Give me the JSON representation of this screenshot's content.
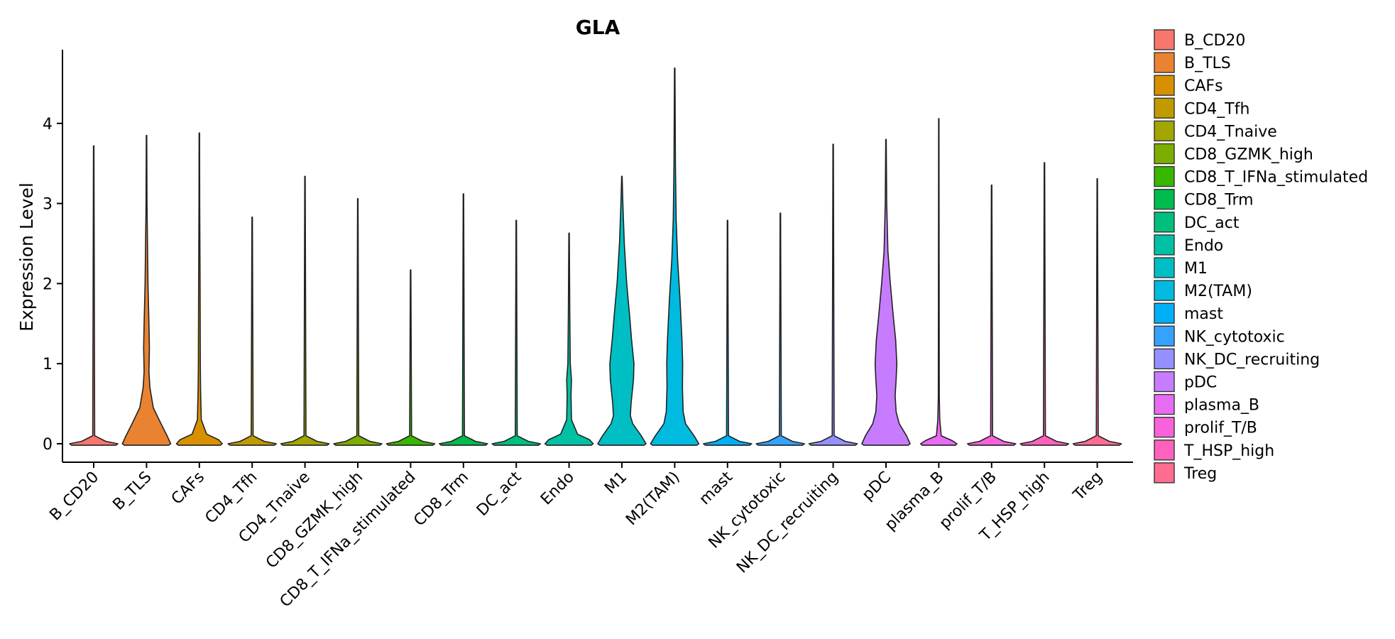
{
  "chart_data": {
    "type": "violin",
    "title": "GLA",
    "xlabel": "",
    "ylabel": "Expression Level",
    "ylim": [
      -0.23,
      4.9
    ],
    "yticks": [
      0,
      1,
      2,
      3,
      4
    ],
    "categories": [
      "B_CD20",
      "B_TLS",
      "CAFs",
      "CD4_Tfh",
      "CD4_Tnaive",
      "CD8_GZMK_high",
      "CD8_T_IFNa_stimulated",
      "CD8_Trm",
      "DC_act",
      "Endo",
      "M1",
      "M2(TAM)",
      "mast",
      "NK_cytotoxic",
      "NK_DC_recruiting",
      "pDC",
      "plasma_B",
      "prolif_T/B",
      "T_HSP_high",
      "Treg"
    ],
    "colors": [
      "#F8766D",
      "#EA8331",
      "#D89000",
      "#C09B00",
      "#A3A500",
      "#7CAE00",
      "#39B600",
      "#00BB4E",
      "#00BF7D",
      "#00C1A3",
      "#00BFC4",
      "#00BAE0",
      "#00B0F6",
      "#35A2FF",
      "#9590FF",
      "#C77CFF",
      "#E76BF3",
      "#FA62DB",
      "#FF62BC",
      "#FF6C91"
    ],
    "max_values": [
      3.72,
      3.85,
      3.88,
      2.83,
      3.34,
      3.06,
      2.17,
      3.12,
      2.79,
      2.63,
      3.34,
      4.69,
      2.79,
      2.88,
      3.74,
      3.8,
      4.06,
      3.23,
      3.51,
      3.31
    ],
    "density_profiles": [
      [
        [
          0,
          1.0
        ],
        [
          0.03,
          0.5
        ],
        [
          0.1,
          0.04
        ],
        [
          3.72,
          0.01
        ]
      ],
      [
        [
          0,
          1.0
        ],
        [
          0.1,
          0.85
        ],
        [
          0.25,
          0.6
        ],
        [
          0.45,
          0.28
        ],
        [
          0.7,
          0.14
        ],
        [
          0.9,
          0.1
        ],
        [
          1.2,
          0.12
        ],
        [
          1.5,
          0.1
        ],
        [
          2.0,
          0.06
        ],
        [
          2.5,
          0.04
        ],
        [
          3.0,
          0.02
        ],
        [
          3.85,
          0.01
        ]
      ],
      [
        [
          0,
          0.95
        ],
        [
          0.05,
          0.8
        ],
        [
          0.12,
          0.3
        ],
        [
          0.3,
          0.08
        ],
        [
          0.7,
          0.05
        ],
        [
          1.0,
          0.04
        ],
        [
          2.0,
          0.03
        ],
        [
          3.0,
          0.015
        ],
        [
          3.88,
          0.01
        ]
      ],
      [
        [
          0,
          1.0
        ],
        [
          0.03,
          0.5
        ],
        [
          0.1,
          0.04
        ],
        [
          2.83,
          0.01
        ]
      ],
      [
        [
          0,
          1.0
        ],
        [
          0.03,
          0.5
        ],
        [
          0.1,
          0.04
        ],
        [
          3.34,
          0.01
        ]
      ],
      [
        [
          0,
          1.0
        ],
        [
          0.03,
          0.5
        ],
        [
          0.1,
          0.04
        ],
        [
          3.06,
          0.01
        ]
      ],
      [
        [
          0,
          1.0
        ],
        [
          0.03,
          0.5
        ],
        [
          0.1,
          0.04
        ],
        [
          2.17,
          0.01
        ]
      ],
      [
        [
          0,
          1.0
        ],
        [
          0.03,
          0.5
        ],
        [
          0.1,
          0.04
        ],
        [
          3.12,
          0.01
        ]
      ],
      [
        [
          0,
          1.0
        ],
        [
          0.03,
          0.5
        ],
        [
          0.1,
          0.04
        ],
        [
          2.79,
          0.01
        ]
      ],
      [
        [
          0,
          1.0
        ],
        [
          0.05,
          0.85
        ],
        [
          0.12,
          0.35
        ],
        [
          0.3,
          0.1
        ],
        [
          0.6,
          0.08
        ],
        [
          0.8,
          0.1
        ],
        [
          1.0,
          0.05
        ],
        [
          1.6,
          0.03
        ],
        [
          2.63,
          0.01
        ]
      ],
      [
        [
          0,
          1.0
        ],
        [
          0.1,
          0.8
        ],
        [
          0.25,
          0.45
        ],
        [
          0.35,
          0.35
        ],
        [
          0.5,
          0.38
        ],
        [
          0.8,
          0.48
        ],
        [
          1.0,
          0.5
        ],
        [
          1.3,
          0.4
        ],
        [
          1.6,
          0.32
        ],
        [
          2.0,
          0.2
        ],
        [
          2.5,
          0.1
        ],
        [
          3.0,
          0.04
        ],
        [
          3.34,
          0.01
        ]
      ],
      [
        [
          0,
          1.0
        ],
        [
          0.1,
          0.8
        ],
        [
          0.25,
          0.45
        ],
        [
          0.4,
          0.35
        ],
        [
          0.7,
          0.32
        ],
        [
          1.0,
          0.33
        ],
        [
          1.3,
          0.3
        ],
        [
          1.8,
          0.22
        ],
        [
          2.3,
          0.12
        ],
        [
          2.8,
          0.06
        ],
        [
          3.5,
          0.03
        ],
        [
          4.69,
          0.01
        ]
      ],
      [
        [
          0,
          1.0
        ],
        [
          0.03,
          0.5
        ],
        [
          0.1,
          0.04
        ],
        [
          2.79,
          0.01
        ]
      ],
      [
        [
          0,
          1.0
        ],
        [
          0.03,
          0.5
        ],
        [
          0.1,
          0.04
        ],
        [
          2.88,
          0.01
        ]
      ],
      [
        [
          0,
          1.0
        ],
        [
          0.03,
          0.5
        ],
        [
          0.1,
          0.04
        ],
        [
          3.74,
          0.01
        ]
      ],
      [
        [
          0,
          1.0
        ],
        [
          0.1,
          0.85
        ],
        [
          0.25,
          0.55
        ],
        [
          0.4,
          0.42
        ],
        [
          0.6,
          0.38
        ],
        [
          0.8,
          0.42
        ],
        [
          1.0,
          0.45
        ],
        [
          1.3,
          0.4
        ],
        [
          1.6,
          0.3
        ],
        [
          2.0,
          0.18
        ],
        [
          2.4,
          0.08
        ],
        [
          3.0,
          0.03
        ],
        [
          3.8,
          0.01
        ]
      ],
      [
        [
          0,
          0.75
        ],
        [
          0.04,
          0.55
        ],
        [
          0.1,
          0.1
        ],
        [
          0.3,
          0.04
        ],
        [
          0.6,
          0.02
        ],
        [
          4.06,
          0.008
        ]
      ],
      [
        [
          0,
          1.0
        ],
        [
          0.03,
          0.5
        ],
        [
          0.1,
          0.04
        ],
        [
          3.23,
          0.01
        ]
      ],
      [
        [
          0,
          1.0
        ],
        [
          0.03,
          0.5
        ],
        [
          0.1,
          0.04
        ],
        [
          3.51,
          0.01
        ]
      ],
      [
        [
          0,
          1.0
        ],
        [
          0.03,
          0.5
        ],
        [
          0.1,
          0.04
        ],
        [
          3.31,
          0.01
        ]
      ]
    ],
    "legend_position": "right",
    "grid": false
  }
}
